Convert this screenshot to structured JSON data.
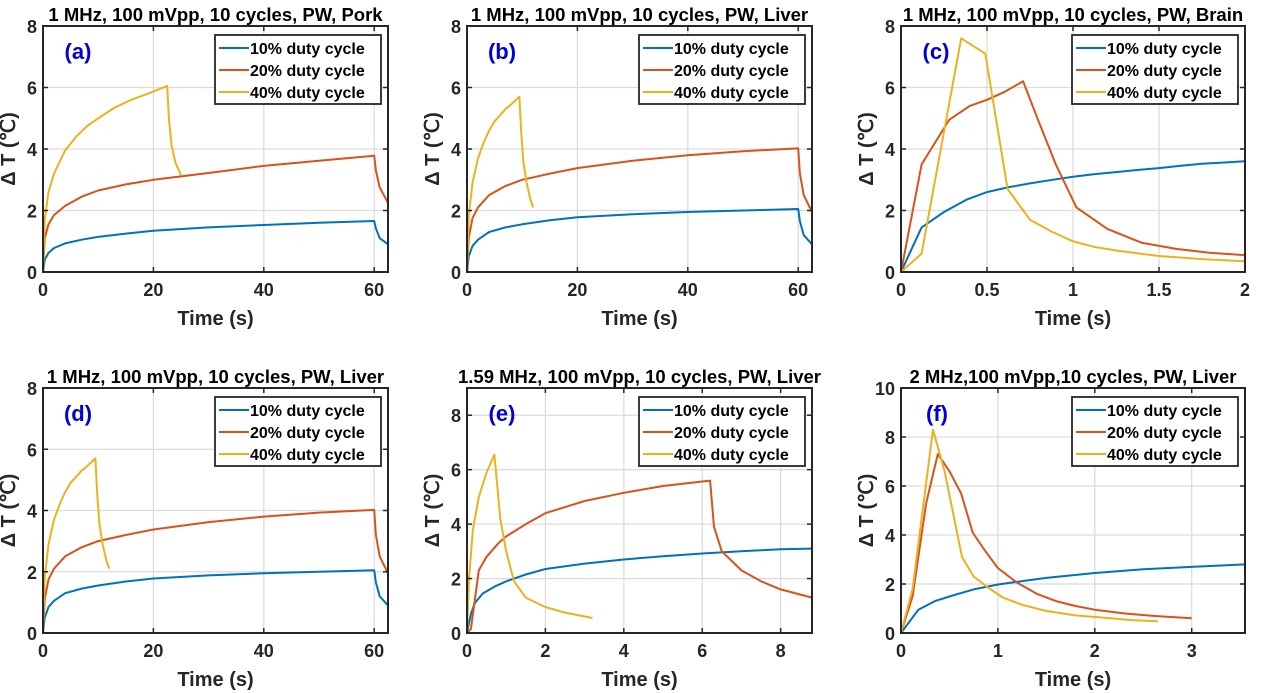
{
  "chart_data": [
    {
      "type": "line",
      "panel_label": "(a)",
      "title": "1 MHz, 100 mVpp, 10 cycles, PW, Pork",
      "xlabel": "Time (s)",
      "ylabel": "Δ T (℃)",
      "xlim": [
        0,
        62.5
      ],
      "ylim": [
        0,
        8
      ],
      "xticks": [
        0,
        20,
        40,
        60
      ],
      "xtick_labels": [
        "0",
        "20",
        "40",
        "60"
      ],
      "yticks": [
        0,
        2,
        4,
        6,
        8
      ],
      "ytick_labels": [
        "0",
        "2",
        "4",
        "6",
        "8"
      ],
      "grid": true,
      "legend_position": "top-right",
      "series": [
        {
          "name": "10% duty cycle",
          "color": "#0072BD",
          "x": [
            0,
            0.3,
            1,
            2,
            4,
            7,
            10,
            15,
            20,
            30,
            40,
            50,
            60,
            60.3,
            61,
            62.5
          ],
          "y": [
            0,
            0.4,
            0.62,
            0.78,
            0.93,
            1.05,
            1.14,
            1.25,
            1.34,
            1.45,
            1.53,
            1.6,
            1.66,
            1.42,
            1.1,
            0.9
          ]
        },
        {
          "name": "20% duty cycle",
          "color": "#D95319",
          "x": [
            0,
            0.3,
            1,
            2,
            4,
            7,
            10,
            15,
            20,
            30,
            40,
            50,
            60,
            60.3,
            61,
            62.5
          ],
          "y": [
            0,
            1.1,
            1.55,
            1.85,
            2.15,
            2.45,
            2.65,
            2.85,
            3.0,
            3.22,
            3.45,
            3.62,
            3.78,
            3.3,
            2.75,
            2.25
          ]
        },
        {
          "name": "40% duty cycle",
          "color": "#EDB120",
          "x": [
            0,
            0.3,
            1,
            2,
            4,
            6,
            8,
            10,
            13,
            16,
            19,
            22.5,
            22.8,
            23.3,
            24,
            25
          ],
          "y": [
            0,
            1.7,
            2.6,
            3.2,
            3.95,
            4.4,
            4.75,
            5.0,
            5.35,
            5.6,
            5.8,
            6.05,
            5.0,
            4.1,
            3.55,
            3.15
          ]
        }
      ]
    },
    {
      "type": "line",
      "panel_label": "(b)",
      "title": "1 MHz, 100 mVpp, 10 cycles, PW, Liver",
      "xlabel": "Time (s)",
      "ylabel": "Δ T (℃)",
      "xlim": [
        0,
        62.5
      ],
      "ylim": [
        0,
        8
      ],
      "xticks": [
        0,
        20,
        40,
        60
      ],
      "xtick_labels": [
        "0",
        "20",
        "40",
        "60"
      ],
      "yticks": [
        0,
        2,
        4,
        6,
        8
      ],
      "ytick_labels": [
        "0",
        "2",
        "4",
        "6",
        "8"
      ],
      "grid": true,
      "legend_position": "top-right",
      "series": [
        {
          "name": "10% duty cycle",
          "color": "#0072BD",
          "x": [
            0,
            0.3,
            1,
            2,
            4,
            7,
            10,
            15,
            20,
            30,
            40,
            50,
            60,
            60.3,
            61,
            62.5
          ],
          "y": [
            0,
            0.5,
            0.85,
            1.05,
            1.3,
            1.45,
            1.55,
            1.68,
            1.78,
            1.88,
            1.95,
            2.0,
            2.05,
            1.65,
            1.2,
            0.9
          ]
        },
        {
          "name": "20% duty cycle",
          "color": "#D95319",
          "x": [
            0,
            0.3,
            1,
            2,
            4,
            7,
            10,
            15,
            20,
            30,
            40,
            50,
            60,
            60.3,
            61,
            62.5
          ],
          "y": [
            0,
            1.1,
            1.75,
            2.1,
            2.5,
            2.8,
            3.0,
            3.2,
            3.38,
            3.62,
            3.8,
            3.93,
            4.02,
            3.2,
            2.5,
            1.95
          ]
        },
        {
          "name": "40% duty cycle",
          "color": "#EDB120",
          "x": [
            0,
            0.3,
            1,
            2,
            3,
            4,
            5,
            6,
            7,
            8,
            9.5,
            9.8,
            10.2,
            10.8,
            11.5,
            12
          ],
          "y": [
            0,
            1.8,
            2.9,
            3.7,
            4.2,
            4.6,
            4.9,
            5.1,
            5.3,
            5.45,
            5.7,
            4.6,
            3.6,
            2.9,
            2.35,
            2.1
          ]
        }
      ]
    },
    {
      "type": "line",
      "panel_label": "(c)",
      "title": "1 MHz, 100 mVpp, 10 cycles, PW, Brain",
      "xlabel": "Time (s)",
      "ylabel": "Δ T (℃)",
      "xlim": [
        0,
        2
      ],
      "ylim": [
        0,
        8
      ],
      "xticks": [
        0,
        0.5,
        1,
        1.5,
        2
      ],
      "xtick_labels": [
        "0",
        "0.5",
        "1",
        "1.5",
        "2"
      ],
      "yticks": [
        0,
        2,
        4,
        6,
        8
      ],
      "ytick_labels": [
        "0",
        "2",
        "4",
        "6",
        "8"
      ],
      "grid": true,
      "legend_position": "top-right",
      "series": [
        {
          "name": "10% duty cycle",
          "color": "#0072BD",
          "x": [
            0,
            0.12,
            0.25,
            0.38,
            0.5,
            0.62,
            0.75,
            0.88,
            1.0,
            1.12,
            1.25,
            1.38,
            1.5,
            1.62,
            1.75,
            1.88,
            2.0
          ],
          "y": [
            0,
            1.45,
            1.95,
            2.35,
            2.6,
            2.75,
            2.88,
            3.0,
            3.1,
            3.18,
            3.25,
            3.32,
            3.38,
            3.45,
            3.52,
            3.56,
            3.6
          ]
        },
        {
          "name": "20% duty cycle",
          "color": "#D95319",
          "x": [
            0,
            0.12,
            0.28,
            0.4,
            0.5,
            0.6,
            0.71,
            0.8,
            0.9,
            1.02,
            1.2,
            1.4,
            1.6,
            1.8,
            2.0
          ],
          "y": [
            0,
            3.5,
            4.95,
            5.4,
            5.6,
            5.85,
            6.2,
            4.9,
            3.5,
            2.1,
            1.4,
            0.95,
            0.75,
            0.62,
            0.55
          ]
        },
        {
          "name": "40% duty cycle",
          "color": "#EDB120",
          "x": [
            0,
            0.12,
            0.35,
            0.49,
            0.62,
            0.75,
            0.88,
            1.0,
            1.12,
            1.25,
            1.5,
            1.75,
            2.0
          ],
          "y": [
            0,
            0.6,
            7.6,
            7.1,
            2.7,
            1.7,
            1.3,
            1.0,
            0.82,
            0.7,
            0.52,
            0.42,
            0.35
          ]
        }
      ]
    },
    {
      "type": "line",
      "panel_label": "(d)",
      "title": "1 MHz, 100 mVpp, 10 cycles, PW, Liver",
      "xlabel": "Time (s)",
      "ylabel": "Δ T (℃)",
      "xlim": [
        0,
        62.5
      ],
      "ylim": [
        0,
        8
      ],
      "xticks": [
        0,
        20,
        40,
        60
      ],
      "xtick_labels": [
        "0",
        "20",
        "40",
        "60"
      ],
      "yticks": [
        0,
        2,
        4,
        6,
        8
      ],
      "ytick_labels": [
        "0",
        "2",
        "4",
        "6",
        "8"
      ],
      "grid": true,
      "legend_position": "top-right",
      "series": [
        {
          "name": "10% duty cycle",
          "color": "#0072BD",
          "x": [
            0,
            0.3,
            1,
            2,
            4,
            7,
            10,
            15,
            20,
            30,
            40,
            50,
            60,
            60.3,
            61,
            62.5
          ],
          "y": [
            0,
            0.5,
            0.85,
            1.05,
            1.3,
            1.45,
            1.55,
            1.68,
            1.78,
            1.88,
            1.95,
            2.0,
            2.05,
            1.65,
            1.2,
            0.9
          ]
        },
        {
          "name": "20% duty cycle",
          "color": "#D95319",
          "x": [
            0,
            0.3,
            1,
            2,
            4,
            7,
            10,
            15,
            20,
            30,
            40,
            50,
            60,
            60.3,
            61,
            62.5
          ],
          "y": [
            0,
            1.1,
            1.75,
            2.1,
            2.5,
            2.8,
            3.0,
            3.2,
            3.38,
            3.62,
            3.8,
            3.93,
            4.02,
            3.2,
            2.5,
            1.95
          ]
        },
        {
          "name": "40% duty cycle",
          "color": "#EDB120",
          "x": [
            0,
            0.3,
            1,
            2,
            3,
            4,
            5,
            6,
            7,
            8,
            9.5,
            9.8,
            10.2,
            10.8,
            11.5,
            12
          ],
          "y": [
            0,
            1.8,
            2.9,
            3.7,
            4.2,
            4.6,
            4.9,
            5.1,
            5.3,
            5.45,
            5.7,
            4.6,
            3.6,
            2.9,
            2.35,
            2.1
          ]
        }
      ]
    },
    {
      "type": "line",
      "panel_label": "(e)",
      "title": "1.59 MHz, 100 mVpp, 10 cycles, PW, Liver",
      "xlabel": "Time (s)",
      "ylabel": "Δ T (℃)",
      "xlim": [
        0,
        8.8
      ],
      "ylim": [
        0,
        9
      ],
      "xticks": [
        0,
        2,
        4,
        6,
        8
      ],
      "xtick_labels": [
        "0",
        "2",
        "4",
        "6",
        "8"
      ],
      "yticks": [
        0,
        2,
        4,
        6,
        8
      ],
      "ytick_labels": [
        "0",
        "2",
        "4",
        "6",
        "8"
      ],
      "grid": true,
      "legend_position": "top-right",
      "series": [
        {
          "name": "10% duty cycle",
          "color": "#0072BD",
          "x": [
            0,
            0.1,
            0.2,
            0.4,
            0.7,
            1.0,
            1.5,
            2,
            3,
            4,
            5,
            6,
            7,
            8,
            8.8
          ],
          "y": [
            0,
            0.7,
            1.1,
            1.45,
            1.7,
            1.9,
            2.15,
            2.35,
            2.55,
            2.7,
            2.82,
            2.92,
            3.0,
            3.08,
            3.1
          ]
        },
        {
          "name": "20% duty cycle",
          "color": "#D95319",
          "x": [
            0,
            0.1,
            0.2,
            0.3,
            0.5,
            0.8,
            1.0,
            1.5,
            2,
            3,
            4,
            5,
            6.2,
            6.3,
            6.5,
            7,
            7.5,
            8,
            8.8
          ],
          "y": [
            0,
            0.15,
            1.2,
            2.3,
            2.8,
            3.3,
            3.55,
            4.0,
            4.4,
            4.85,
            5.15,
            5.4,
            5.6,
            3.9,
            3.0,
            2.3,
            1.9,
            1.6,
            1.3
          ]
        },
        {
          "name": "40% duty cycle",
          "color": "#EDB120",
          "x": [
            0,
            0.05,
            0.15,
            0.3,
            0.5,
            0.7,
            0.85,
            1.0,
            1.2,
            1.5,
            2.0,
            2.5,
            3.2
          ],
          "y": [
            0,
            2.0,
            3.8,
            5.0,
            5.9,
            6.55,
            4.2,
            3.0,
            1.9,
            1.3,
            0.95,
            0.75,
            0.55
          ]
        }
      ]
    },
    {
      "type": "line",
      "panel_label": "(f)",
      "title": "2 MHz,100 mVpp,10 cycles, PW, Liver",
      "xlabel": "Time (s)",
      "ylabel": "Δ T (℃)",
      "xlim": [
        0,
        3.55
      ],
      "ylim": [
        0,
        10
      ],
      "xticks": [
        0,
        1,
        2,
        3
      ],
      "xtick_labels": [
        "0",
        "1",
        "2",
        "3"
      ],
      "yticks": [
        0,
        2,
        4,
        6,
        8,
        10
      ],
      "ytick_labels": [
        "0",
        "2",
        "4",
        "6",
        "8",
        "10"
      ],
      "grid": true,
      "legend_position": "top-right",
      "series": [
        {
          "name": "10% duty cycle",
          "color": "#0072BD",
          "x": [
            0,
            0.18,
            0.35,
            0.55,
            0.75,
            1.0,
            1.25,
            1.5,
            2.0,
            2.5,
            3.0,
            3.55
          ],
          "y": [
            0,
            0.95,
            1.3,
            1.55,
            1.78,
            1.98,
            2.12,
            2.25,
            2.45,
            2.6,
            2.7,
            2.8
          ]
        },
        {
          "name": "20% duty cycle",
          "color": "#D95319",
          "x": [
            0,
            0.12,
            0.26,
            0.38,
            0.5,
            0.62,
            0.74,
            0.86,
            1.0,
            1.2,
            1.4,
            1.6,
            1.8,
            2.0,
            2.3,
            2.6,
            3.0
          ],
          "y": [
            0,
            1.5,
            5.3,
            7.3,
            6.6,
            5.7,
            4.1,
            3.4,
            2.65,
            2.05,
            1.6,
            1.3,
            1.1,
            0.95,
            0.8,
            0.7,
            0.6
          ]
        },
        {
          "name": "40% duty cycle",
          "color": "#EDB120",
          "x": [
            0,
            0.12,
            0.33,
            0.45,
            0.63,
            0.75,
            0.9,
            1.05,
            1.25,
            1.5,
            1.8,
            2.1,
            2.4,
            2.65
          ],
          "y": [
            0,
            1.8,
            8.3,
            6.6,
            3.1,
            2.3,
            1.85,
            1.45,
            1.15,
            0.9,
            0.72,
            0.62,
            0.52,
            0.48
          ]
        }
      ]
    }
  ]
}
